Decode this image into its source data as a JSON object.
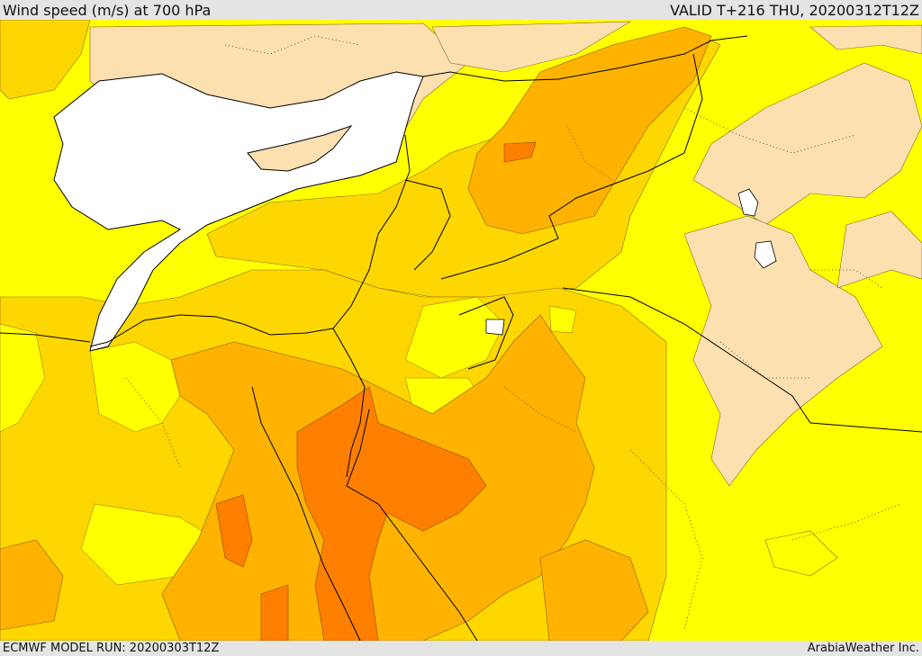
{
  "header": {
    "title": "Wind speed (m/s) at 700 hPa",
    "valid": "VALID T+216 THU, 20200312T12Z"
  },
  "footer": {
    "model_run": "ECMWF MODEL RUN: 20200303T12Z",
    "credit": "ArabiaWeather Inc."
  },
  "map": {
    "variable": "wind speed",
    "units": "m/s",
    "level": "700 hPa",
    "colors": {
      "sea": "#ffffff",
      "level_1": "#fde0b0",
      "level_2": "#ffff00",
      "level_3": "#ffd700",
      "level_4": "#ffb300",
      "level_5": "#ff7f00"
    }
  }
}
